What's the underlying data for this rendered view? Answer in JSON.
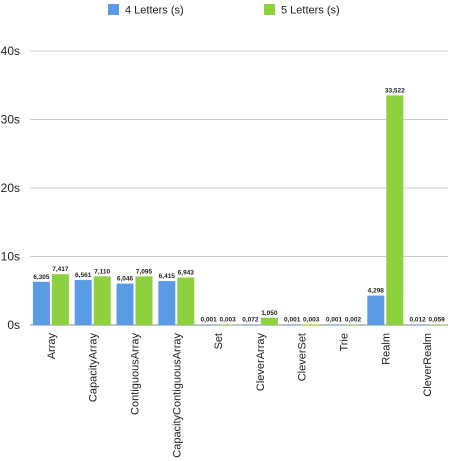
{
  "chart_data": {
    "type": "bar",
    "title": "",
    "xlabel": "",
    "ylabel": "",
    "ylim": [
      0,
      40
    ],
    "yticks": [
      {
        "value": 0,
        "label": "0s"
      },
      {
        "value": 10,
        "label": "10s"
      },
      {
        "value": 20,
        "label": "20s"
      },
      {
        "value": 30,
        "label": "30s"
      },
      {
        "value": 40,
        "label": "40s"
      }
    ],
    "grid": true,
    "legend_position": "top",
    "categories": [
      "Array",
      "CapacityArray",
      "ContiguousArray",
      "CapacityContiguousArray",
      "Set",
      "CleverArray",
      "CleverSet",
      "Trie",
      "Realm",
      "CleverRealm"
    ],
    "series": [
      {
        "name": "4 Letters (s)",
        "color": "#5b9be6",
        "values": [
          6.305,
          6.561,
          6.046,
          6.415,
          0.001,
          0.072,
          0.001,
          0.001,
          4.298,
          0.012
        ],
        "labels": [
          "6,305",
          "6,561",
          "6,046",
          "6,415",
          "0,001",
          "0,072",
          "0,001",
          "0,001",
          "4,298",
          "0,012"
        ]
      },
      {
        "name": "5 Letters (s)",
        "color": "#8ed13f",
        "values": [
          7.417,
          7.11,
          7.095,
          6.943,
          0.003,
          1.05,
          0.003,
          0.002,
          33.522,
          0.059
        ],
        "labels": [
          "7,417",
          "7,110",
          "7,095",
          "6,943",
          "0,003",
          "1,050",
          "0,003",
          "0,002",
          "33,522",
          "0,059"
        ]
      }
    ]
  }
}
